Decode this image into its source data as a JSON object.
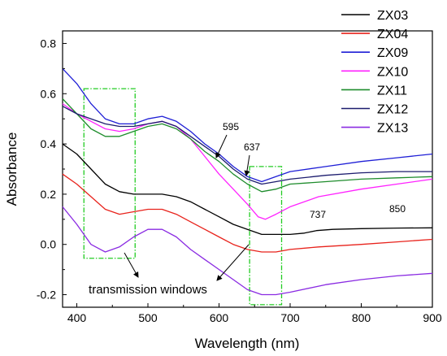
{
  "chart_data": {
    "type": "line",
    "title": "",
    "xlabel": "Wavelength (nm)",
    "ylabel": "Absorbance",
    "xlim": [
      380,
      900
    ],
    "ylim": [
      -0.25,
      0.85
    ],
    "x_ticks": [
      400,
      500,
      600,
      700,
      800,
      900
    ],
    "y_ticks": [
      -0.2,
      0.0,
      0.2,
      0.4,
      0.6,
      0.8
    ],
    "x_tick_labels": [
      "400",
      "500",
      "600",
      "700",
      "800",
      "900"
    ],
    "y_tick_labels": [
      "-0.2",
      "0.0",
      "0.2",
      "0.4",
      "0.6",
      "0.8"
    ],
    "grid": false,
    "legend_position": "top-right",
    "series": [
      {
        "name": "ZX03",
        "color": "#000000",
        "points": [
          [
            380,
            0.4
          ],
          [
            400,
            0.36
          ],
          [
            420,
            0.3
          ],
          [
            440,
            0.24
          ],
          [
            460,
            0.21
          ],
          [
            480,
            0.2
          ],
          [
            500,
            0.2
          ],
          [
            520,
            0.2
          ],
          [
            540,
            0.19
          ],
          [
            560,
            0.17
          ],
          [
            580,
            0.14
          ],
          [
            600,
            0.11
          ],
          [
            620,
            0.08
          ],
          [
            640,
            0.06
          ],
          [
            660,
            0.04
          ],
          [
            680,
            0.04
          ],
          [
            700,
            0.04
          ],
          [
            720,
            0.045
          ],
          [
            737,
            0.055
          ],
          [
            760,
            0.06
          ],
          [
            800,
            0.063
          ],
          [
            850,
            0.065
          ],
          [
            900,
            0.066
          ]
        ]
      },
      {
        "name": "ZX04",
        "color": "#e8231c",
        "points": [
          [
            380,
            0.28
          ],
          [
            400,
            0.24
          ],
          [
            420,
            0.19
          ],
          [
            440,
            0.14
          ],
          [
            460,
            0.12
          ],
          [
            480,
            0.13
          ],
          [
            500,
            0.14
          ],
          [
            520,
            0.14
          ],
          [
            540,
            0.12
          ],
          [
            560,
            0.09
          ],
          [
            580,
            0.06
          ],
          [
            600,
            0.03
          ],
          [
            620,
            0.0
          ],
          [
            640,
            -0.02
          ],
          [
            660,
            -0.03
          ],
          [
            680,
            -0.03
          ],
          [
            700,
            -0.02
          ],
          [
            740,
            -0.01
          ],
          [
            800,
            0.0
          ],
          [
            850,
            0.01
          ],
          [
            900,
            0.02
          ]
        ]
      },
      {
        "name": "ZX09",
        "color": "#1f1fd6",
        "points": [
          [
            380,
            0.7
          ],
          [
            400,
            0.64
          ],
          [
            420,
            0.56
          ],
          [
            440,
            0.5
          ],
          [
            460,
            0.48
          ],
          [
            480,
            0.48
          ],
          [
            500,
            0.5
          ],
          [
            520,
            0.51
          ],
          [
            540,
            0.49
          ],
          [
            560,
            0.45
          ],
          [
            580,
            0.4
          ],
          [
            600,
            0.36
          ],
          [
            620,
            0.31
          ],
          [
            640,
            0.27
          ],
          [
            660,
            0.25
          ],
          [
            680,
            0.27
          ],
          [
            700,
            0.29
          ],
          [
            750,
            0.31
          ],
          [
            800,
            0.33
          ],
          [
            850,
            0.345
          ],
          [
            900,
            0.36
          ]
        ]
      },
      {
        "name": "ZX10",
        "color": "#ff22ff",
        "points": [
          [
            380,
            0.56
          ],
          [
            400,
            0.52
          ],
          [
            420,
            0.49
          ],
          [
            440,
            0.46
          ],
          [
            460,
            0.45
          ],
          [
            480,
            0.46
          ],
          [
            500,
            0.48
          ],
          [
            520,
            0.49
          ],
          [
            540,
            0.47
          ],
          [
            560,
            0.42
          ],
          [
            580,
            0.35
          ],
          [
            600,
            0.28
          ],
          [
            620,
            0.22
          ],
          [
            640,
            0.16
          ],
          [
            655,
            0.11
          ],
          [
            665,
            0.1
          ],
          [
            680,
            0.12
          ],
          [
            700,
            0.15
          ],
          [
            740,
            0.19
          ],
          [
            800,
            0.22
          ],
          [
            850,
            0.24
          ],
          [
            900,
            0.26
          ]
        ]
      },
      {
        "name": "ZX11",
        "color": "#1e8c2c",
        "points": [
          [
            380,
            0.58
          ],
          [
            400,
            0.52
          ],
          [
            420,
            0.46
          ],
          [
            440,
            0.43
          ],
          [
            460,
            0.43
          ],
          [
            480,
            0.45
          ],
          [
            500,
            0.47
          ],
          [
            520,
            0.48
          ],
          [
            540,
            0.46
          ],
          [
            560,
            0.42
          ],
          [
            580,
            0.37
          ],
          [
            600,
            0.33
          ],
          [
            620,
            0.28
          ],
          [
            640,
            0.24
          ],
          [
            660,
            0.21
          ],
          [
            680,
            0.22
          ],
          [
            700,
            0.24
          ],
          [
            750,
            0.25
          ],
          [
            800,
            0.26
          ],
          [
            850,
            0.265
          ],
          [
            900,
            0.27
          ]
        ]
      },
      {
        "name": "ZX12",
        "color": "#1c1c6e",
        "points": [
          [
            380,
            0.55
          ],
          [
            400,
            0.52
          ],
          [
            420,
            0.5
          ],
          [
            440,
            0.48
          ],
          [
            460,
            0.47
          ],
          [
            480,
            0.47
          ],
          [
            500,
            0.48
          ],
          [
            520,
            0.49
          ],
          [
            540,
            0.47
          ],
          [
            560,
            0.43
          ],
          [
            580,
            0.39
          ],
          [
            600,
            0.35
          ],
          [
            620,
            0.3
          ],
          [
            640,
            0.26
          ],
          [
            660,
            0.24
          ],
          [
            680,
            0.25
          ],
          [
            700,
            0.26
          ],
          [
            750,
            0.275
          ],
          [
            800,
            0.285
          ],
          [
            850,
            0.29
          ],
          [
            900,
            0.29
          ]
        ]
      },
      {
        "name": "ZX13",
        "color": "#8a2be2",
        "points": [
          [
            380,
            0.15
          ],
          [
            400,
            0.08
          ],
          [
            420,
            0.0
          ],
          [
            440,
            -0.03
          ],
          [
            460,
            -0.01
          ],
          [
            480,
            0.03
          ],
          [
            500,
            0.06
          ],
          [
            520,
            0.06
          ],
          [
            540,
            0.03
          ],
          [
            560,
            -0.02
          ],
          [
            580,
            -0.06
          ],
          [
            600,
            -0.1
          ],
          [
            620,
            -0.14
          ],
          [
            640,
            -0.18
          ],
          [
            660,
            -0.2
          ],
          [
            680,
            -0.2
          ],
          [
            700,
            -0.19
          ],
          [
            750,
            -0.16
          ],
          [
            800,
            -0.14
          ],
          [
            850,
            -0.125
          ],
          [
            900,
            -0.115
          ]
        ]
      }
    ],
    "annotations": [
      {
        "text": "595",
        "x": 595,
        "y": 0.49
      },
      {
        "text": "637",
        "x": 637,
        "y": 0.4
      },
      {
        "text": "737",
        "x": 737,
        "y": 0.12
      },
      {
        "text": "850",
        "x": 850,
        "y": 0.13
      },
      {
        "text": "transmission windows",
        "x": 500,
        "y": -0.24
      }
    ],
    "highlight_boxes": [
      {
        "x0": 410,
        "x1": 482,
        "y0": -0.055,
        "y1": 0.62,
        "color": "#22cc22"
      },
      {
        "x0": 643,
        "x1": 688,
        "y0": -0.24,
        "y1": 0.31,
        "color": "#22cc22"
      }
    ]
  }
}
